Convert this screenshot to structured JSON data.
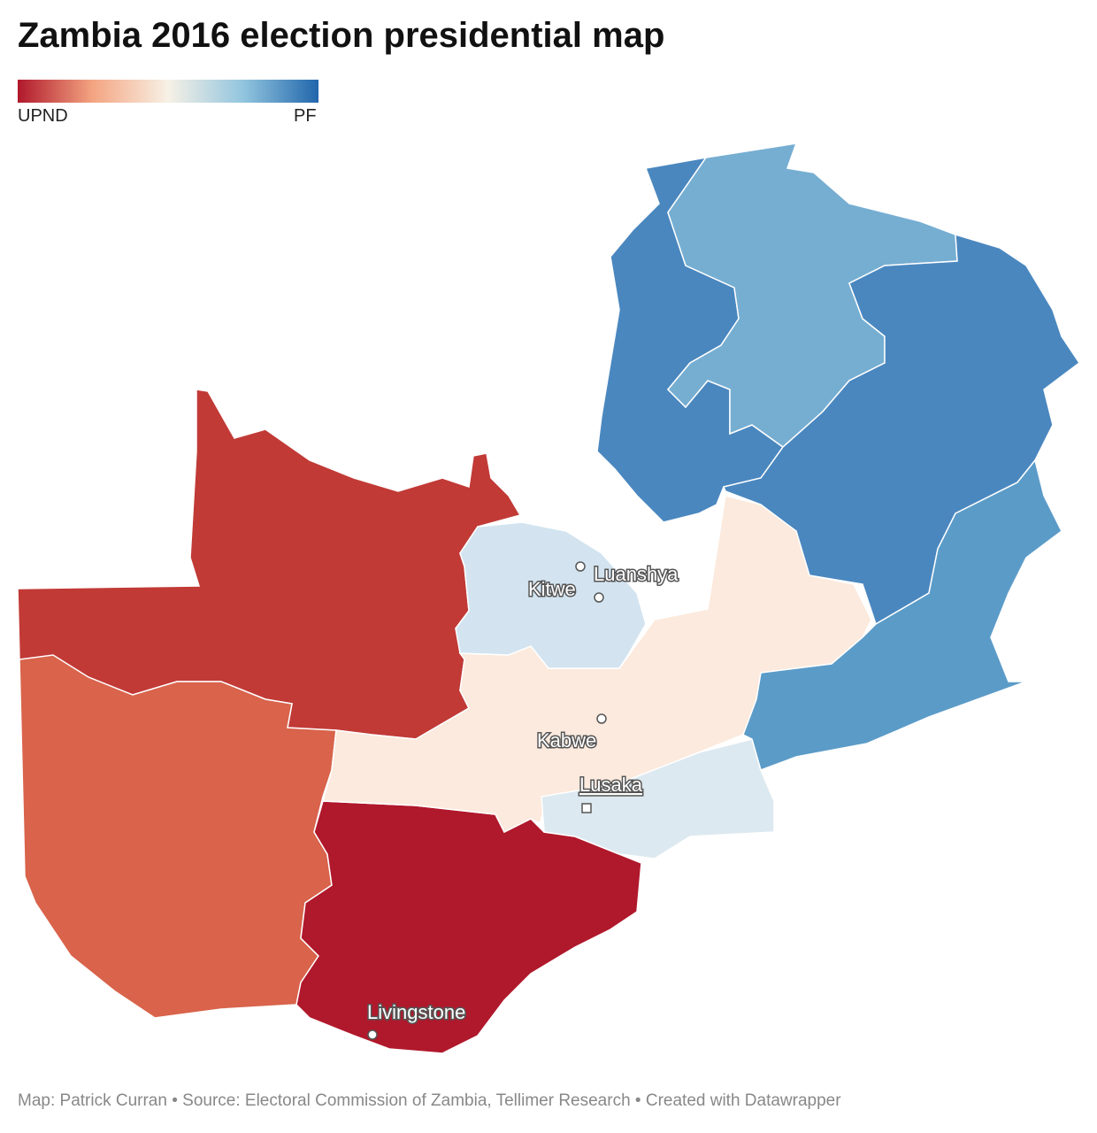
{
  "header": {
    "title": "Zambia 2016 election presidential map"
  },
  "legend": {
    "left": "UPND",
    "right": "PF"
  },
  "cities": [
    {
      "name": "Luanshya"
    },
    {
      "name": "Kitwe"
    },
    {
      "name": "Kabwe"
    },
    {
      "name": "Lusaka"
    },
    {
      "name": "Livingstone"
    }
  ],
  "footer": "Map: Patrick Curran • Source: Electoral Commission of Zambia, Tellimer Research • Created with Datawrapper"
}
